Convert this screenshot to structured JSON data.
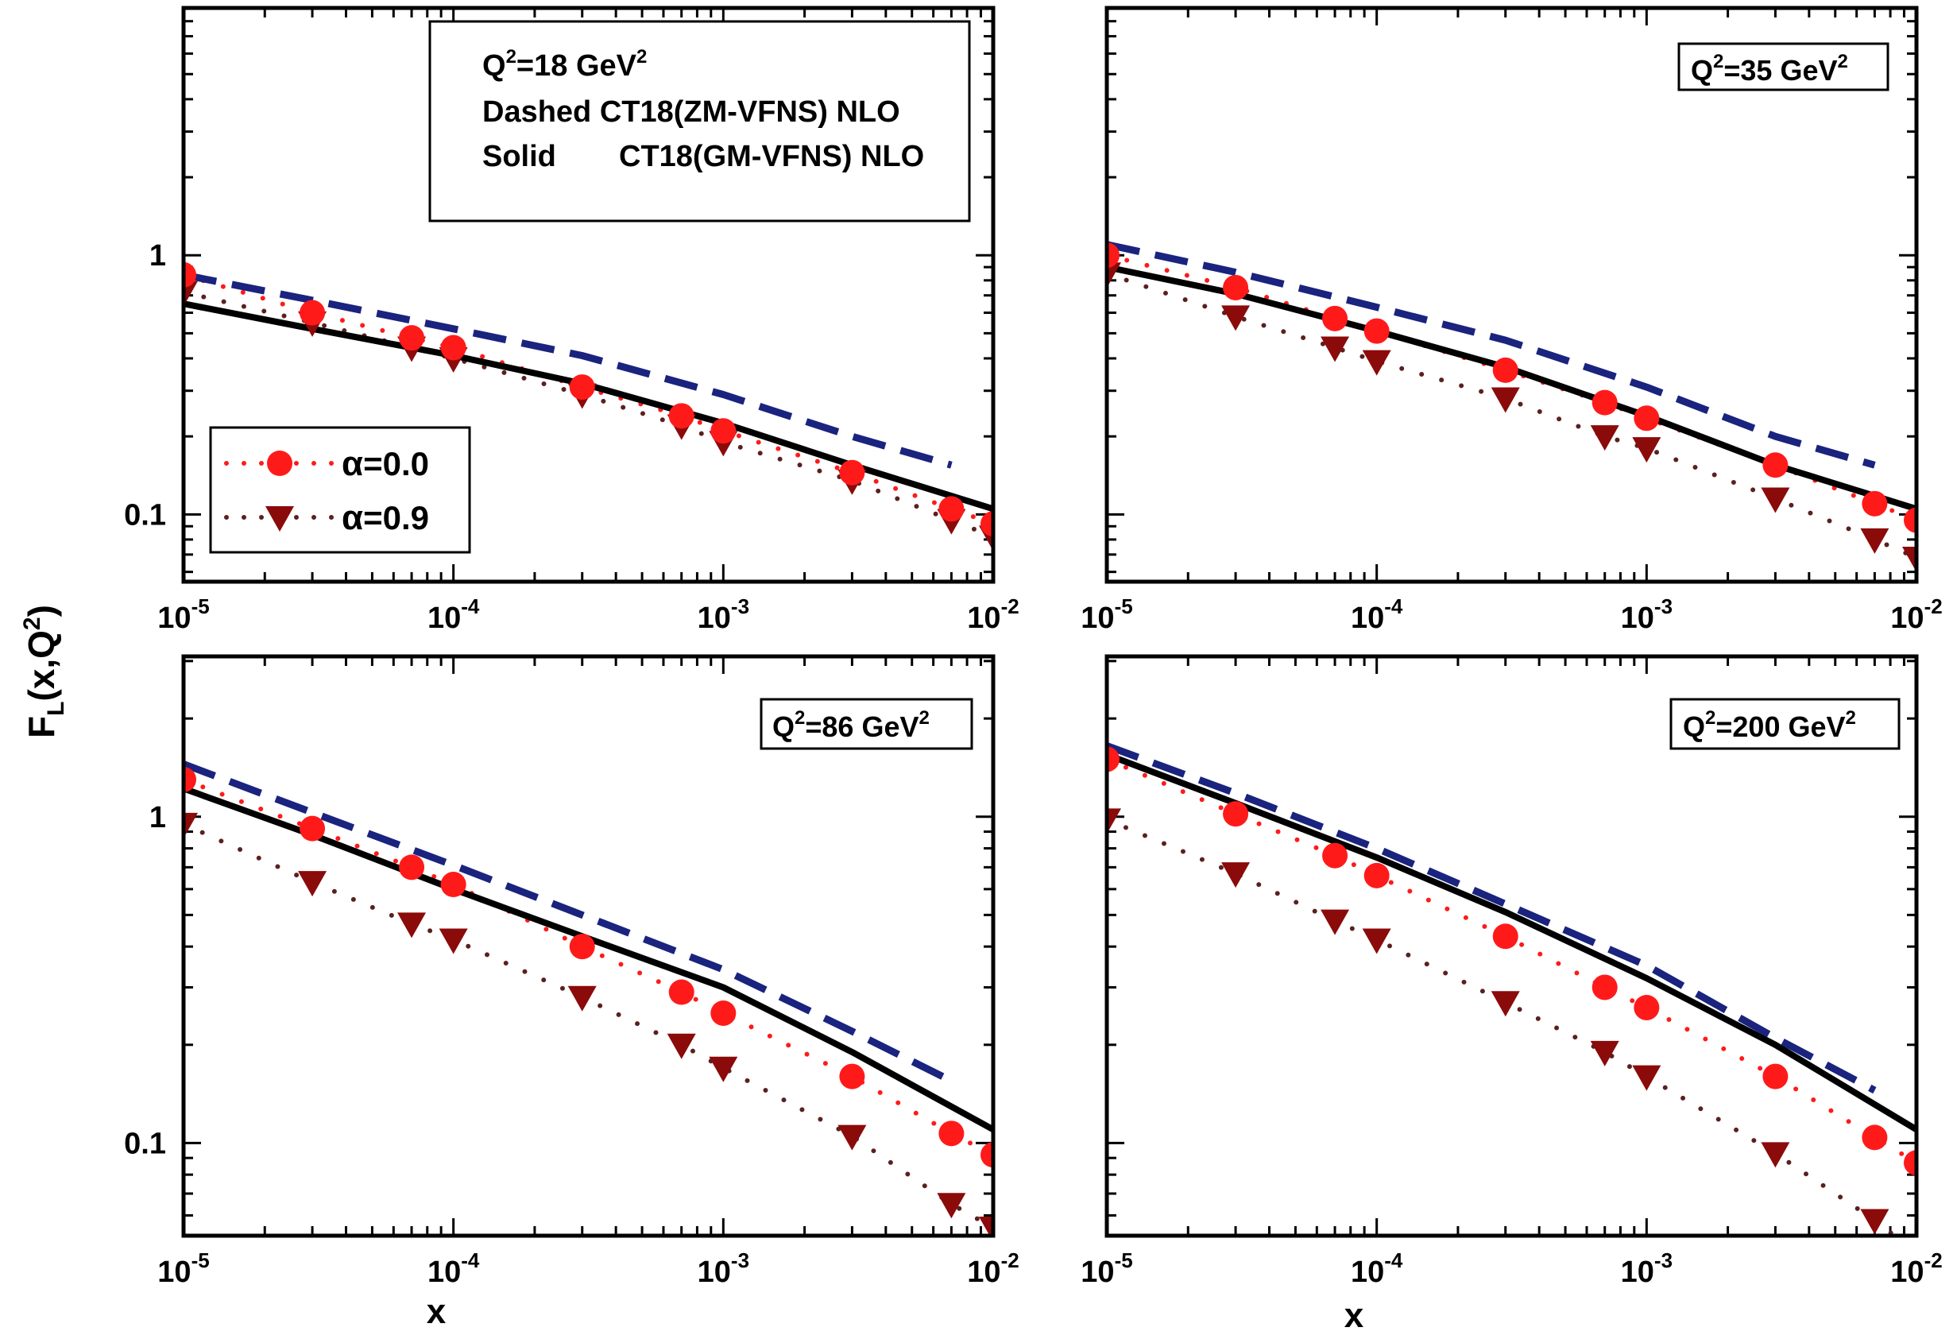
{
  "figure": {
    "ylabel_main": "F",
    "ylabel_sub": "L",
    "ylabel_rest": "(x,Q",
    "ylabel_sup": "2",
    "ylabel_close": ")",
    "xlabel": "x",
    "x_tick_base": "10",
    "x_tick_exponents": [
      "-5",
      "-4",
      "-3",
      "-2"
    ],
    "legend_info": {
      "line1_main": "Q",
      "line1_sup": "2",
      "line1_rest": "=18 GeV",
      "line1_sup2": "2",
      "line2": "Dashed CT18(ZM-VFNS) NLO",
      "line3_a": "Solid",
      "line3_b": "CT18(GM-VFNS) NLO"
    },
    "legend_markers": [
      {
        "symbol": "α",
        "text": "=0.0"
      },
      {
        "symbol": "α",
        "text": "=0.9"
      }
    ],
    "colors": {
      "dashed_zm": "#1a237e",
      "solid_gm": "#000000",
      "alpha0": "#ff1a1a",
      "alpha09": "#8b0a0a",
      "alpha09_dots": "#5a2020"
    }
  },
  "chart_data": [
    {
      "type": "line",
      "panel": "top-left",
      "label_q": "",
      "xscale": "log",
      "yscale": "log",
      "xlim": [
        1e-05,
        0.01
      ],
      "ylim": [
        0.055,
        9
      ],
      "y_tick_labels": [
        "1",
        "0.1"
      ],
      "x": [
        1e-05,
        3e-05,
        7e-05,
        0.0001,
        0.0003,
        0.0007,
        0.001,
        0.003,
        0.007,
        0.01
      ],
      "series": [
        {
          "name": "Dashed CT18(ZM-VFNS) NLO",
          "style": "dashed",
          "x": [
            1e-05,
            3e-05,
            0.0001,
            0.0003,
            0.001,
            0.003,
            0.007
          ],
          "values": [
            0.84,
            0.67,
            0.52,
            0.41,
            0.29,
            0.2,
            0.155
          ]
        },
        {
          "name": "Solid CT18(GM-VFNS) NLO",
          "style": "solid",
          "x": [
            1e-05,
            3e-05,
            0.0001,
            0.0003,
            0.001,
            0.003,
            0.01
          ],
          "values": [
            0.65,
            0.52,
            0.41,
            0.32,
            0.225,
            0.155,
            0.105
          ]
        },
        {
          "name": "α=0.0",
          "style": "dotted-circle",
          "values": [
            0.84,
            0.6,
            0.48,
            0.44,
            0.31,
            0.24,
            0.21,
            0.145,
            0.105,
            0.092
          ]
        },
        {
          "name": "α=0.9",
          "style": "dotted-triangle",
          "values": [
            0.72,
            0.55,
            0.44,
            0.4,
            0.29,
            0.22,
            0.19,
            0.135,
            0.095,
            0.082
          ]
        }
      ]
    },
    {
      "type": "line",
      "panel": "top-right",
      "label_q": "Q",
      "label_sup": "2",
      "label_rest": "=35 GeV",
      "label_sup2": "2",
      "xscale": "log",
      "yscale": "log",
      "xlim": [
        1e-05,
        0.01
      ],
      "ylim": [
        0.055,
        9
      ],
      "y_tick_labels": [],
      "x": [
        1e-05,
        3e-05,
        7e-05,
        0.0001,
        0.0003,
        0.0007,
        0.001,
        0.003,
        0.007,
        0.01
      ],
      "series": [
        {
          "style": "dashed",
          "x": [
            1e-05,
            3e-05,
            0.0001,
            0.0003,
            0.001,
            0.003,
            0.007
          ],
          "values": [
            1.1,
            0.86,
            0.63,
            0.47,
            0.31,
            0.2,
            0.155
          ]
        },
        {
          "style": "solid",
          "x": [
            1e-05,
            3e-05,
            0.0001,
            0.0003,
            0.001,
            0.003,
            0.01
          ],
          "values": [
            0.9,
            0.71,
            0.51,
            0.37,
            0.24,
            0.155,
            0.105
          ]
        },
        {
          "style": "dotted-circle",
          "values": [
            1.0,
            0.75,
            0.57,
            0.51,
            0.36,
            0.27,
            0.235,
            0.155,
            0.11,
            0.095
          ]
        },
        {
          "style": "dotted-triangle",
          "values": [
            0.85,
            0.58,
            0.44,
            0.39,
            0.28,
            0.2,
            0.18,
            0.115,
            0.08,
            0.068
          ]
        }
      ]
    },
    {
      "type": "line",
      "panel": "bottom-left",
      "label_q": "Q",
      "label_sup": "2",
      "label_rest": "=86 GeV",
      "label_sup2": "2",
      "xscale": "log",
      "yscale": "log",
      "xlim": [
        1e-05,
        0.01
      ],
      "ylim": [
        0.052,
        3.1
      ],
      "y_tick_labels": [
        "1",
        "0.1"
      ],
      "x": [
        1e-05,
        3e-05,
        7e-05,
        0.0001,
        0.0003,
        0.0007,
        0.001,
        0.003,
        0.007,
        0.01
      ],
      "series": [
        {
          "style": "dashed",
          "x": [
            1e-05,
            3e-05,
            0.0001,
            0.0003,
            0.001,
            0.003,
            0.007
          ],
          "values": [
            1.45,
            1.03,
            0.71,
            0.5,
            0.34,
            0.22,
            0.155
          ]
        },
        {
          "style": "solid",
          "x": [
            1e-05,
            3e-05,
            0.0001,
            0.0003,
            0.001,
            0.003,
            0.01
          ],
          "values": [
            1.22,
            0.88,
            0.6,
            0.43,
            0.3,
            0.19,
            0.11
          ]
        },
        {
          "style": "dotted-circle",
          "values": [
            1.3,
            0.92,
            0.7,
            0.62,
            0.4,
            0.29,
            0.25,
            0.16,
            0.107,
            0.092
          ]
        },
        {
          "style": "dotted-triangle",
          "values": [
            0.95,
            0.63,
            0.47,
            0.42,
            0.28,
            0.2,
            0.17,
            0.105,
            0.065,
            0.055
          ]
        }
      ]
    },
    {
      "type": "line",
      "panel": "bottom-right",
      "label_q": "Q",
      "label_sup": "2",
      "label_rest": "=200 GeV",
      "label_sup2": "2",
      "xscale": "log",
      "yscale": "log",
      "xlim": [
        1e-05,
        0.01
      ],
      "ylim": [
        0.052,
        3.1
      ],
      "y_tick_labels": [],
      "x": [
        1e-05,
        3e-05,
        7e-05,
        0.0001,
        0.0003,
        0.0007,
        0.001,
        0.003,
        0.007,
        0.01
      ],
      "series": [
        {
          "style": "dashed",
          "x": [
            1e-05,
            3e-05,
            0.0001,
            0.0003,
            0.001,
            0.003,
            0.007
          ],
          "values": [
            1.65,
            1.18,
            0.8,
            0.54,
            0.35,
            0.21,
            0.145
          ]
        },
        {
          "style": "solid",
          "x": [
            1e-05,
            3e-05,
            0.0001,
            0.0003,
            0.001,
            0.003,
            0.01
          ],
          "values": [
            1.55,
            1.1,
            0.75,
            0.51,
            0.32,
            0.2,
            0.11
          ]
        },
        {
          "style": "dotted-circle",
          "values": [
            1.5,
            1.02,
            0.76,
            0.66,
            0.43,
            0.3,
            0.26,
            0.16,
            0.104,
            0.087
          ]
        },
        {
          "style": "dotted-triangle",
          "values": [
            0.98,
            0.67,
            0.48,
            0.42,
            0.27,
            0.19,
            0.16,
            0.093,
            0.058,
            0.046
          ]
        }
      ]
    }
  ]
}
